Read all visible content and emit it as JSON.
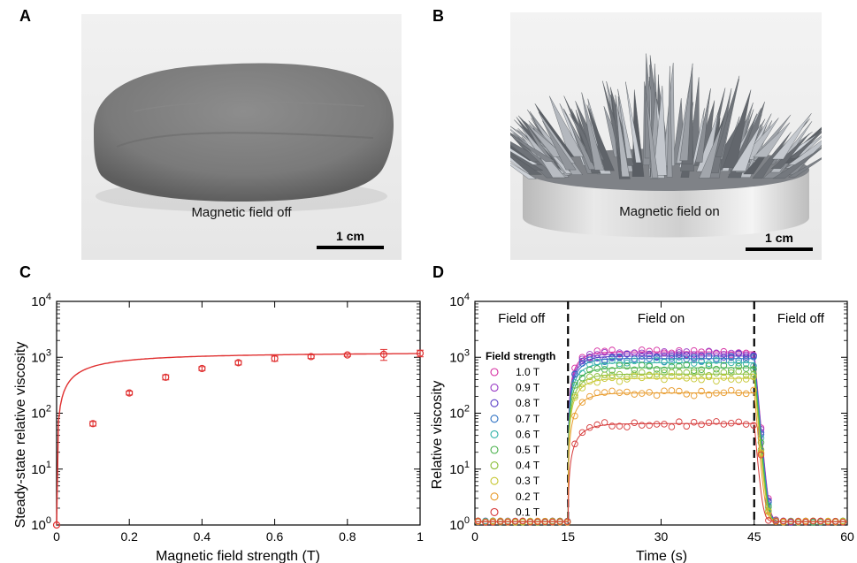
{
  "panels": {
    "a": {
      "letter": "A",
      "caption": "Magnetic field off",
      "scalebar": "1 cm"
    },
    "b": {
      "letter": "B",
      "caption": "Magnetic field on",
      "scalebar": "1 cm"
    },
    "c": {
      "letter": "C"
    },
    "d": {
      "letter": "D"
    }
  },
  "chart_data": [
    {
      "type": "scatter",
      "panel": "C",
      "xlabel": "Magnetic field strength (T)",
      "ylabel": "Steady-state relative viscosity",
      "x_ticks": [
        "0",
        "0.2",
        "0.4",
        "0.6",
        "0.8",
        "1"
      ],
      "xlim": [
        0,
        1
      ],
      "ylim": [
        1,
        10000
      ],
      "yscale": "log",
      "y_tick_exponents": [
        "0",
        "1",
        "2",
        "3",
        "4"
      ],
      "color": "#e03030",
      "x": [
        0,
        0.1,
        0.2,
        0.3,
        0.4,
        0.5,
        0.6,
        0.7,
        0.8,
        0.9,
        1.0
      ],
      "y": [
        1,
        65,
        230,
        440,
        630,
        800,
        950,
        1030,
        1100,
        1130,
        1180
      ],
      "error": [
        0,
        6,
        18,
        45,
        50,
        70,
        100,
        80,
        60,
        250,
        160
      ],
      "fit_line": true
    },
    {
      "type": "line",
      "panel": "D",
      "xlabel": "Time (s)",
      "ylabel": "Relative viscosity",
      "x_ticks": [
        "0",
        "15",
        "30",
        "45",
        "60"
      ],
      "xlim": [
        0,
        60
      ],
      "ylim": [
        1,
        10000
      ],
      "yscale": "log",
      "y_tick_exponents": [
        "0",
        "1",
        "2",
        "3",
        "4"
      ],
      "regions": [
        "Field off",
        "Field on",
        "Field off"
      ],
      "region_boundaries": [
        15,
        45
      ],
      "legend_title": "Field strength",
      "series": [
        {
          "name": "1.0 T",
          "plateau": 1250,
          "color": "#d62ca0"
        },
        {
          "name": "0.9 T",
          "plateau": 1150,
          "color": "#9b3fc7"
        },
        {
          "name": "0.8 T",
          "plateau": 1050,
          "color": "#5a3fc7"
        },
        {
          "name": "0.7 T",
          "plateau": 950,
          "color": "#2f72c4"
        },
        {
          "name": "0.6 T",
          "plateau": 800,
          "color": "#33b3a8"
        },
        {
          "name": "0.5 T",
          "plateau": 650,
          "color": "#48b04a"
        },
        {
          "name": "0.4 T",
          "plateau": 500,
          "color": "#8cbf3a"
        },
        {
          "name": "0.3 T",
          "plateau": 420,
          "color": "#c7c733"
        },
        {
          "name": "0.2 T",
          "plateau": 230,
          "color": "#e89a2a"
        },
        {
          "name": "0.1 T",
          "plateau": 65,
          "color": "#d63a3a"
        }
      ]
    }
  ]
}
